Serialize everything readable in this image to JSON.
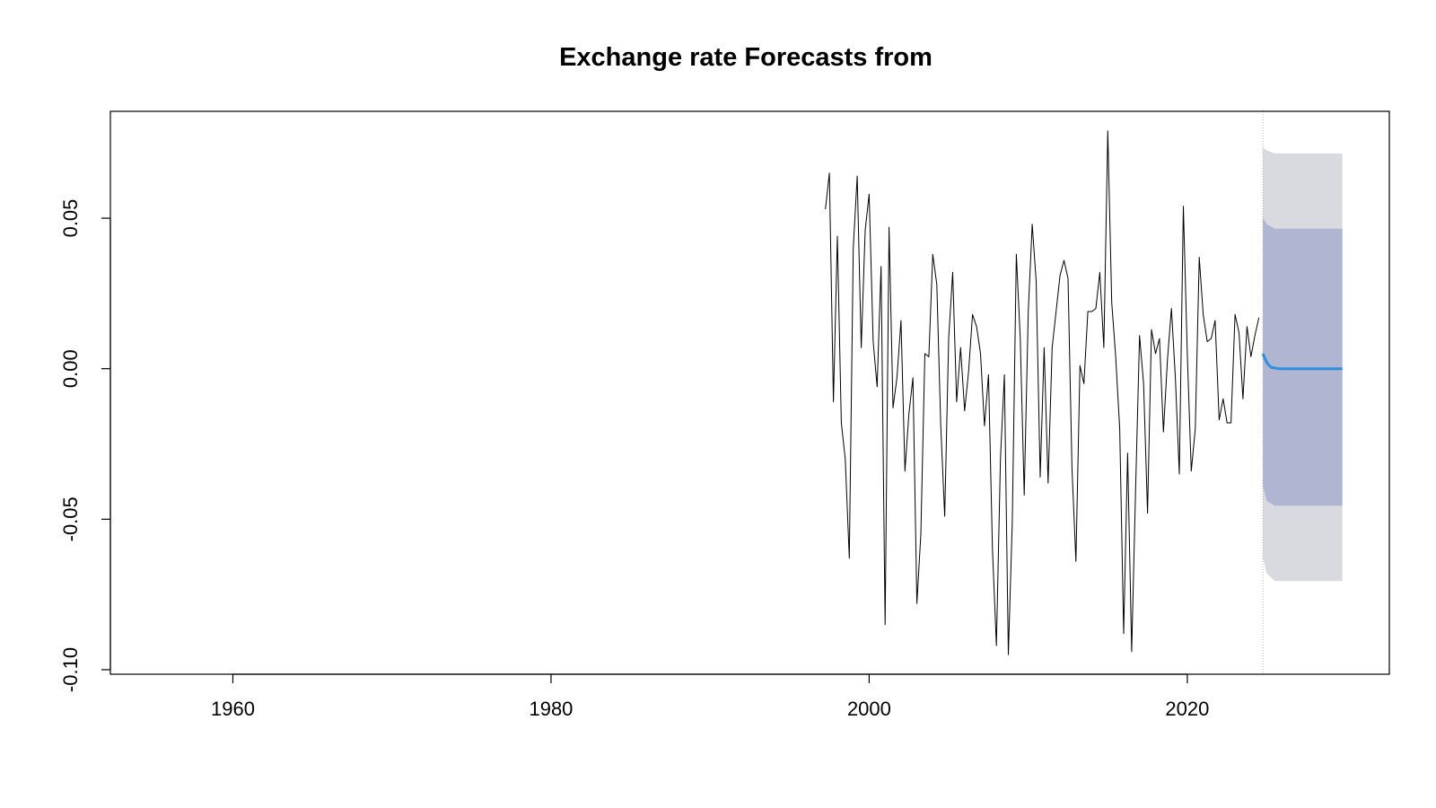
{
  "chart_data": {
    "type": "line",
    "title": "Exchange rate Forecasts from",
    "xlabel": "",
    "ylabel": "",
    "xlim": [
      1952.3,
      2032.7
    ],
    "ylim": [
      -0.1015,
      0.0855
    ],
    "x_ticks": [
      1960,
      1980,
      2000,
      2020
    ],
    "x_tick_labels": [
      "1960",
      "1980",
      "2000",
      "2020"
    ],
    "y_ticks": [
      -0.1,
      -0.05,
      0.0,
      0.05
    ],
    "y_tick_labels": [
      "-0.10",
      "-0.05",
      "0.00",
      "0.05"
    ],
    "grid": false,
    "legend": "none",
    "forecast_origin": 2024.75,
    "series": [
      {
        "role": "observed",
        "color": "#000000",
        "points": [
          [
            1997.25,
            0.053
          ],
          [
            1997.5,
            0.065
          ],
          [
            1997.75,
            -0.011
          ],
          [
            1998.0,
            0.044
          ],
          [
            1998.25,
            -0.018
          ],
          [
            1998.5,
            -0.03
          ],
          [
            1998.75,
            -0.063
          ],
          [
            1999.0,
            0.04
          ],
          [
            1999.25,
            0.064
          ],
          [
            1999.5,
            0.007
          ],
          [
            1999.75,
            0.046
          ],
          [
            2000.0,
            0.058
          ],
          [
            2000.25,
            0.009
          ],
          [
            2000.5,
            -0.006
          ],
          [
            2000.75,
            0.034
          ],
          [
            2001.0,
            -0.085
          ],
          [
            2001.25,
            0.047
          ],
          [
            2001.5,
            -0.013
          ],
          [
            2001.75,
            -0.003
          ],
          [
            2002.0,
            0.016
          ],
          [
            2002.25,
            -0.034
          ],
          [
            2002.5,
            -0.015
          ],
          [
            2002.75,
            -0.003
          ],
          [
            2003.0,
            -0.078
          ],
          [
            2003.25,
            -0.055
          ],
          [
            2003.5,
            0.005
          ],
          [
            2003.75,
            0.004
          ],
          [
            2004.0,
            0.038
          ],
          [
            2004.25,
            0.028
          ],
          [
            2004.5,
            -0.019
          ],
          [
            2004.75,
            -0.049
          ],
          [
            2005.0,
            0.01
          ],
          [
            2005.25,
            0.032
          ],
          [
            2005.5,
            -0.011
          ],
          [
            2005.75,
            0.007
          ],
          [
            2006.0,
            -0.014
          ],
          [
            2006.25,
            -0.001
          ],
          [
            2006.5,
            0.018
          ],
          [
            2006.75,
            0.014
          ],
          [
            2007.0,
            0.005
          ],
          [
            2007.25,
            -0.019
          ],
          [
            2007.5,
            -0.002
          ],
          [
            2007.75,
            -0.06
          ],
          [
            2008.0,
            -0.092
          ],
          [
            2008.25,
            -0.03
          ],
          [
            2008.5,
            -0.002
          ],
          [
            2008.75,
            -0.095
          ],
          [
            2009.0,
            -0.051
          ],
          [
            2009.25,
            0.038
          ],
          [
            2009.5,
            0.01
          ],
          [
            2009.75,
            -0.042
          ],
          [
            2010.0,
            0.019
          ],
          [
            2010.25,
            0.048
          ],
          [
            2010.5,
            0.029
          ],
          [
            2010.75,
            -0.036
          ],
          [
            2011.0,
            0.007
          ],
          [
            2011.25,
            -0.038
          ],
          [
            2011.5,
            0.007
          ],
          [
            2011.75,
            0.019
          ],
          [
            2012.0,
            0.031
          ],
          [
            2012.25,
            0.036
          ],
          [
            2012.5,
            0.03
          ],
          [
            2012.75,
            -0.033
          ],
          [
            2013.0,
            -0.064
          ],
          [
            2013.25,
            0.001
          ],
          [
            2013.5,
            -0.005
          ],
          [
            2013.75,
            0.019
          ],
          [
            2014.0,
            0.019
          ],
          [
            2014.25,
            0.02
          ],
          [
            2014.5,
            0.032
          ],
          [
            2014.75,
            0.007
          ],
          [
            2015.0,
            0.079
          ],
          [
            2015.25,
            0.022
          ],
          [
            2015.5,
            0.004
          ],
          [
            2015.75,
            -0.02
          ],
          [
            2016.0,
            -0.088
          ],
          [
            2016.25,
            -0.028
          ],
          [
            2016.5,
            -0.094
          ],
          [
            2016.75,
            -0.04
          ],
          [
            2017.0,
            0.011
          ],
          [
            2017.25,
            -0.005
          ],
          [
            2017.5,
            -0.048
          ],
          [
            2017.75,
            0.013
          ],
          [
            2018.0,
            0.005
          ],
          [
            2018.25,
            0.01
          ],
          [
            2018.5,
            -0.021
          ],
          [
            2018.75,
            0.003
          ],
          [
            2019.0,
            0.02
          ],
          [
            2019.25,
            -0.003
          ],
          [
            2019.5,
            -0.035
          ],
          [
            2019.75,
            0.054
          ],
          [
            2020.0,
            0.005
          ],
          [
            2020.25,
            -0.034
          ],
          [
            2020.5,
            -0.02
          ],
          [
            2020.75,
            0.037
          ],
          [
            2021.0,
            0.018
          ],
          [
            2021.25,
            0.009
          ],
          [
            2021.5,
            0.01
          ],
          [
            2021.75,
            0.016
          ],
          [
            2022.0,
            -0.017
          ],
          [
            2022.25,
            -0.01
          ],
          [
            2022.5,
            -0.018
          ],
          [
            2022.75,
            -0.018
          ],
          [
            2023.0,
            0.018
          ],
          [
            2023.25,
            0.012
          ],
          [
            2023.5,
            -0.01
          ],
          [
            2023.75,
            0.014
          ],
          [
            2024.0,
            0.004
          ],
          [
            2024.25,
            0.011
          ],
          [
            2024.5,
            0.017
          ]
        ]
      },
      {
        "role": "forecast_mean",
        "color": "#2f8fde",
        "points": [
          [
            2024.75,
            0.005
          ],
          [
            2025.0,
            0.002
          ],
          [
            2025.25,
            0.0005
          ],
          [
            2025.5,
            0.0002
          ],
          [
            2025.75,
            0.0
          ],
          [
            2026.0,
            0.0
          ],
          [
            2026.5,
            0.0
          ],
          [
            2027.0,
            0.0
          ],
          [
            2027.5,
            0.0
          ],
          [
            2028.0,
            0.0
          ],
          [
            2028.5,
            0.0
          ],
          [
            2029.0,
            0.0
          ],
          [
            2029.5,
            0.0
          ],
          [
            2029.75,
            0.0
          ]
        ]
      }
    ],
    "intervals": [
      {
        "level": 95,
        "color": "#d9d9e0",
        "upper": [
          [
            2024.75,
            0.0735
          ],
          [
            2025.0,
            0.0725
          ],
          [
            2025.5,
            0.0715
          ],
          [
            2029.75,
            0.0715
          ]
        ],
        "lower": [
          [
            2024.75,
            -0.063
          ],
          [
            2025.0,
            -0.068
          ],
          [
            2025.5,
            -0.0705
          ],
          [
            2029.75,
            -0.0705
          ]
        ]
      },
      {
        "level": 80,
        "color": "#b0b5d1",
        "upper": [
          [
            2024.75,
            0.05
          ],
          [
            2025.0,
            0.048
          ],
          [
            2025.5,
            0.0465
          ],
          [
            2029.75,
            0.0465
          ]
        ],
        "lower": [
          [
            2024.75,
            -0.039
          ],
          [
            2025.0,
            -0.044
          ],
          [
            2025.5,
            -0.0455
          ],
          [
            2029.75,
            -0.0455
          ]
        ]
      }
    ]
  }
}
